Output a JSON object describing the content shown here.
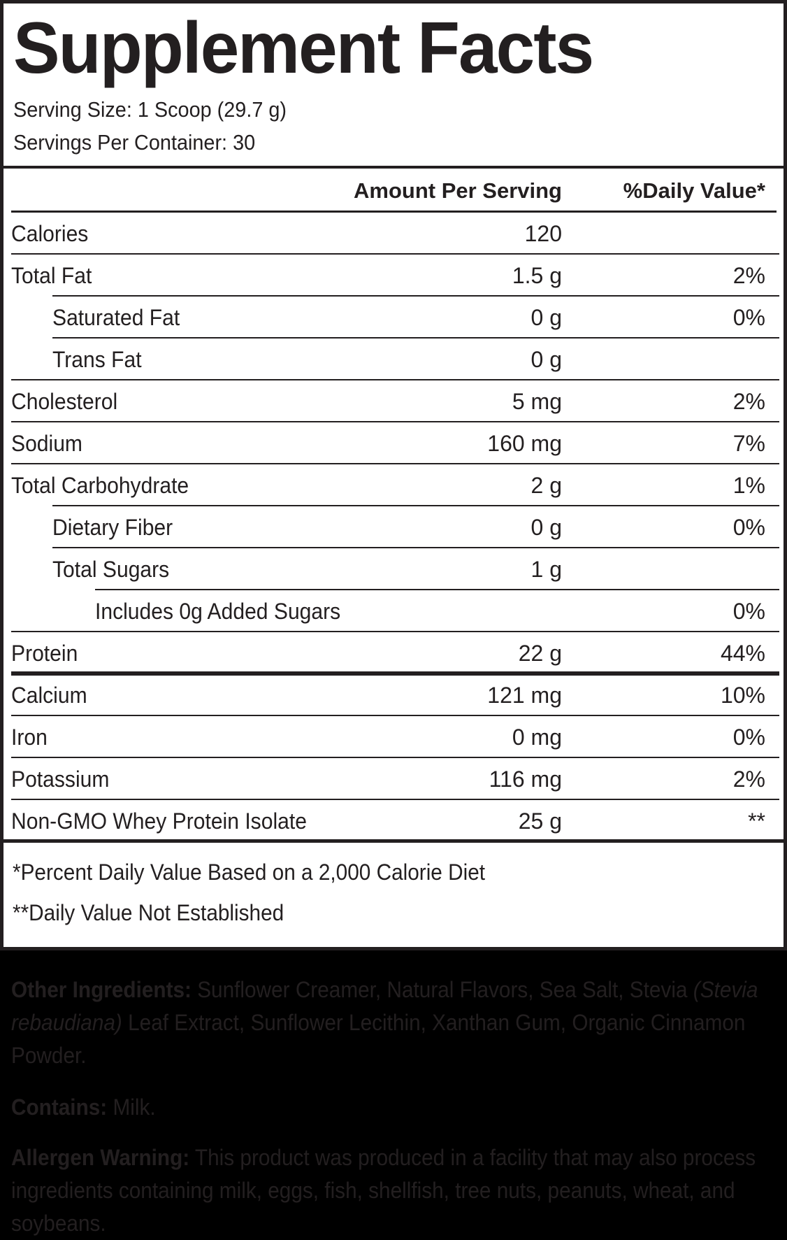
{
  "header": {
    "title": "Supplement Facts",
    "serving_size": "Serving Size: 1 Scoop (29.7 g)",
    "servings_per_container": "Servings Per Container: 30"
  },
  "columns": {
    "amount": "Amount Per Serving",
    "daily_value": "%Daily Value*"
  },
  "rows": [
    {
      "name": "Calories",
      "amount": "120",
      "dv": "",
      "level": 0
    },
    {
      "name": "Total Fat",
      "amount": "1.5 g",
      "dv": "2%",
      "level": 0
    },
    {
      "name": "Saturated Fat",
      "amount": "0 g",
      "dv": "0%",
      "level": 1
    },
    {
      "name": "Trans Fat",
      "amount": "0 g",
      "dv": "",
      "level": 1
    },
    {
      "name": "Cholesterol",
      "amount": "5 mg",
      "dv": "2%",
      "level": 0
    },
    {
      "name": "Sodium",
      "amount": "160 mg",
      "dv": "7%",
      "level": 0
    },
    {
      "name": "Total Carbohydrate",
      "amount": "2 g",
      "dv": "1%",
      "level": 0
    },
    {
      "name": "Dietary Fiber",
      "amount": "0 g",
      "dv": "0%",
      "level": 1
    },
    {
      "name": "Total Sugars",
      "amount": "1 g",
      "dv": "",
      "level": 1
    },
    {
      "name": "Includes 0g Added Sugars",
      "amount": "",
      "dv": "0%",
      "level": 2
    },
    {
      "name": "Protein",
      "amount": "22 g",
      "dv": "44%",
      "level": 0
    },
    {
      "name": "Calcium",
      "amount": "121 mg",
      "dv": "10%",
      "level": 0
    },
    {
      "name": "Iron",
      "amount": "0 mg",
      "dv": "0%",
      "level": 0
    },
    {
      "name": "Potassium",
      "amount": "116 mg",
      "dv": "2%",
      "level": 0
    },
    {
      "name": "Non-GMO Whey Protein Isolate",
      "amount": "25 g",
      "dv": "**",
      "level": 0
    }
  ],
  "footnotes": {
    "percent_dv": "*Percent Daily Value Based on a 2,000 Calorie Diet",
    "not_established": "**Daily Value Not Established"
  },
  "info": {
    "other_ingredients_label": "Other Ingredients:",
    "other_ingredients_1": " Sunflower Creamer, Natural Flavors, Sea Salt, Stevia ",
    "other_ingredients_italic": "(Stevia rebaudiana)",
    "other_ingredients_2": " Leaf Extract, Sunflower Lecithin, Xanthan Gum, Organic Cinnamon Powder.",
    "contains_label": "Contains:",
    "contains_text": " Milk.",
    "allergen_label": "Allergen Warning:",
    "allergen_text": " This product was produced in a facility that may also process ingredients containing milk, eggs, fish, shellfish, tree nuts, peanuts, wheat, and soybeans."
  },
  "colors": {
    "ink": "#231f20",
    "panel_bg": "#ffffff",
    "page_bg": "#000000"
  }
}
